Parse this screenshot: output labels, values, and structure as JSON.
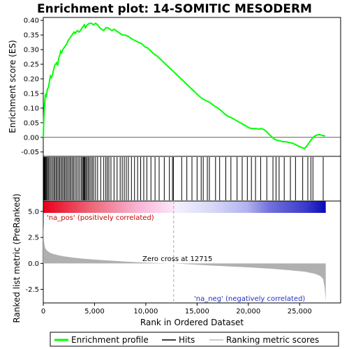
{
  "chart_data": {
    "type": "line",
    "title": "Enrichment plot: 14-SOMITIC MESODERM",
    "top_panel": {
      "ylabel": "Enrichment score (ES)",
      "ylim": [
        -0.065,
        0.41
      ],
      "yticks": [
        -0.05,
        0.0,
        0.05,
        0.1,
        0.15,
        0.2,
        0.25,
        0.3,
        0.35,
        0.4
      ],
      "ytick_labels": [
        "-0.05",
        "0.00",
        "0.05",
        "0.10",
        "0.15",
        "0.20",
        "0.25",
        "0.30",
        "0.35",
        "0.40"
      ],
      "series": [
        {
          "name": "Enrichment profile",
          "color": "#00ff00",
          "x": [
            0,
            50,
            100,
            200,
            300,
            400,
            500,
            600,
            700,
            800,
            900,
            1000,
            1100,
            1200,
            1300,
            1400,
            1500,
            1600,
            1700,
            1800,
            1900,
            2000,
            2100,
            2200,
            2300,
            2400,
            2500,
            2600,
            2700,
            2800,
            2900,
            3000,
            3100,
            3300,
            3500,
            3700,
            3900,
            4000,
            4100,
            4300,
            4500,
            4700,
            4900,
            5100,
            5300,
            5500,
            5700,
            5900,
            6100,
            6300,
            6500,
            6700,
            6900,
            7100,
            7300,
            7500,
            7700,
            7900,
            8100,
            8300,
            8500,
            8700,
            9000,
            9300,
            9600,
            9900,
            10200,
            10500,
            10800,
            11100,
            11400,
            11700,
            12000,
            12300,
            12600,
            12900,
            13200,
            13500,
            13800,
            14100,
            14400,
            14700,
            15000,
            15300,
            15600,
            15900,
            16200,
            16500,
            16800,
            17100,
            17400,
            17700,
            18000,
            18300,
            18600,
            18900,
            19200,
            19500,
            19800,
            20100,
            20400,
            20700,
            21000,
            21300,
            21600,
            21900,
            22200,
            22500,
            22800,
            23100,
            23400,
            23700,
            24000,
            24300,
            24600,
            24900,
            25200,
            25500,
            25700,
            25900,
            26100,
            26300,
            26500,
            26700,
            26900,
            27100,
            27300,
            27500
          ],
          "y": [
            0.0,
            0.06,
            0.1,
            0.145,
            0.14,
            0.165,
            0.17,
            0.19,
            0.21,
            0.205,
            0.215,
            0.23,
            0.245,
            0.25,
            0.255,
            0.245,
            0.27,
            0.28,
            0.295,
            0.29,
            0.3,
            0.305,
            0.31,
            0.315,
            0.32,
            0.33,
            0.335,
            0.34,
            0.345,
            0.35,
            0.355,
            0.36,
            0.355,
            0.365,
            0.36,
            0.37,
            0.38,
            0.385,
            0.375,
            0.385,
            0.39,
            0.39,
            0.385,
            0.39,
            0.385,
            0.375,
            0.37,
            0.365,
            0.375,
            0.375,
            0.37,
            0.365,
            0.37,
            0.365,
            0.36,
            0.355,
            0.35,
            0.35,
            0.348,
            0.345,
            0.34,
            0.335,
            0.33,
            0.325,
            0.32,
            0.31,
            0.305,
            0.295,
            0.285,
            0.278,
            0.268,
            0.258,
            0.248,
            0.238,
            0.228,
            0.218,
            0.208,
            0.198,
            0.188,
            0.178,
            0.168,
            0.158,
            0.148,
            0.138,
            0.13,
            0.125,
            0.12,
            0.112,
            0.105,
            0.098,
            0.09,
            0.08,
            0.072,
            0.068,
            0.062,
            0.056,
            0.05,
            0.044,
            0.038,
            0.032,
            0.03,
            0.03,
            0.028,
            0.03,
            0.025,
            0.015,
            0.005,
            -0.005,
            -0.01,
            -0.012,
            -0.015,
            -0.015,
            -0.018,
            -0.02,
            -0.025,
            -0.03,
            -0.035,
            -0.038,
            -0.03,
            -0.02,
            -0.01,
            0.0,
            0.005,
            0.008,
            0.01,
            0.008,
            0.006,
            0.005
          ]
        }
      ]
    },
    "hits": {
      "name": "Hits",
      "x": [
        10,
        40,
        80,
        130,
        190,
        260,
        330,
        420,
        520,
        640,
        760,
        900,
        1020,
        1130,
        1250,
        1360,
        1480,
        1600,
        1720,
        1840,
        1960,
        2080,
        2200,
        2320,
        2450,
        2580,
        2700,
        2830,
        2960,
        3100,
        3250,
        3400,
        3550,
        3700,
        3820,
        3900,
        3980,
        4060,
        4150,
        4260,
        4380,
        4500,
        4640,
        4780,
        4920,
        5100,
        5300,
        5600,
        5900,
        6100,
        6250,
        6400,
        6600,
        6900,
        7200,
        7500,
        7700,
        7900,
        8100,
        8300,
        8600,
        8900,
        9200,
        9500,
        9800,
        10100,
        10500,
        10900,
        11300,
        11800,
        12300,
        12600,
        12700,
        13500,
        14000,
        14500,
        15000,
        15400,
        15600,
        16000,
        16200,
        16800,
        17200,
        17800,
        18300,
        18900,
        19400,
        19900,
        20300,
        20700,
        21200,
        21800,
        22400,
        22700,
        23000,
        23500,
        24100,
        24600,
        25300,
        25800,
        26100,
        26300,
        27300
      ]
    },
    "ranking_metric": {
      "name": "Ranking metric scores",
      "ylabel": "Ranked list metric (PreRanked)",
      "ylim": [
        -3.8,
        6.0
      ],
      "yticks": [
        -2.5,
        0.0,
        2.5,
        5.0
      ],
      "ytick_labels": [
        "-2.5",
        "0.0",
        "2.5",
        "5.0"
      ],
      "x": [
        0,
        60,
        150,
        300,
        600,
        1000,
        1500,
        2000,
        3000,
        4000,
        5000,
        6000,
        7000,
        8000,
        9000,
        10000,
        11000,
        12000,
        12715,
        14000,
        16000,
        18000,
        20000,
        22000,
        24000,
        25500,
        26500,
        27000,
        27300,
        27450,
        27550
      ],
      "y": [
        4.0,
        2.2,
        1.6,
        1.3,
        1.05,
        0.9,
        0.78,
        0.68,
        0.55,
        0.45,
        0.37,
        0.3,
        0.24,
        0.18,
        0.13,
        0.08,
        0.04,
        0.01,
        0.0,
        -0.07,
        -0.18,
        -0.28,
        -0.38,
        -0.5,
        -0.65,
        -0.8,
        -1.0,
        -1.2,
        -1.5,
        -2.4,
        -3.6
      ]
    },
    "xlabel": "Rank in Ordered Dataset",
    "xlim": [
      0,
      29000
    ],
    "xticks": [
      0,
      5000,
      10000,
      15000,
      20000,
      25000
    ],
    "xtick_labels": [
      "0",
      "5,000",
      "10,000",
      "15,000",
      "20,000",
      "25,000"
    ],
    "zero_cross": 12715,
    "annotations": {
      "pos_label": "'na_pos' (positively correlated)",
      "neg_label": "'na_neg' (negatively correlated)",
      "zero_cross_label": "Zero cross at 12715"
    },
    "legend": {
      "placement": "bottom",
      "items": [
        {
          "label": "Enrichment profile",
          "color": "#00ff00"
        },
        {
          "label": "Hits",
          "color": "#000000"
        },
        {
          "label": "Ranking metric scores",
          "color": "#bbbbbb"
        }
      ]
    },
    "grid": false
  }
}
